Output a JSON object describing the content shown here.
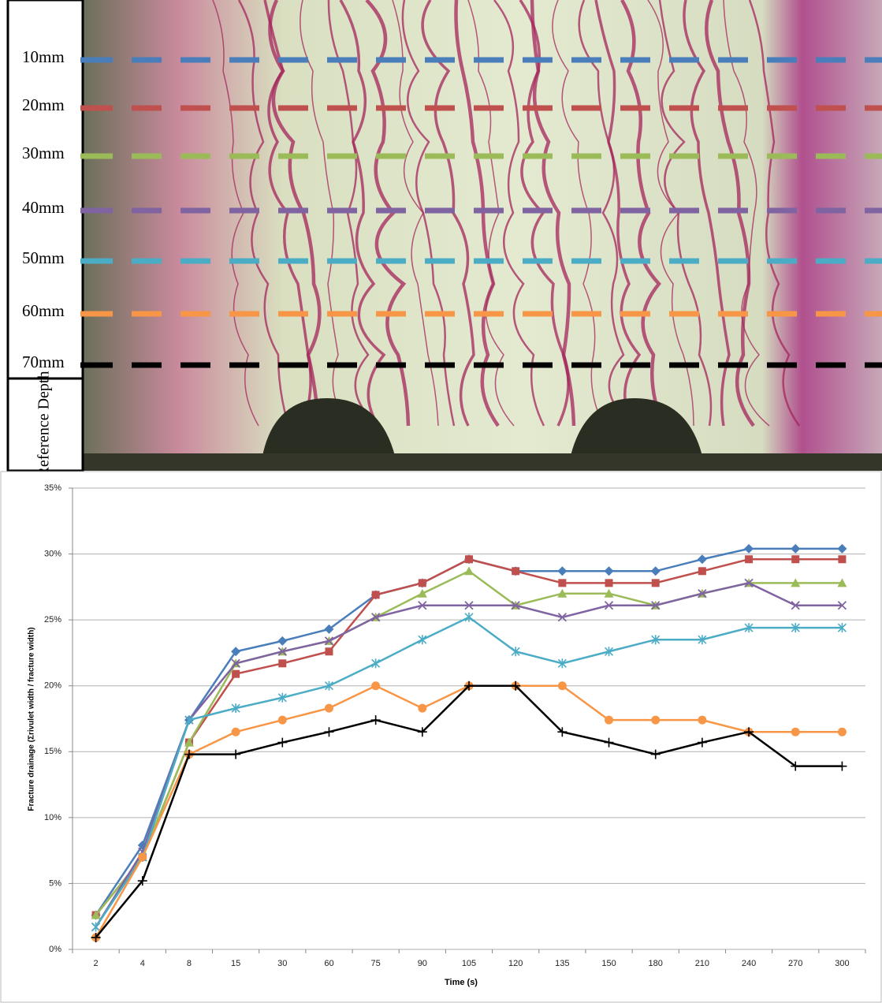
{
  "photo_panel": {
    "caption": "Reference Depth"
  },
  "chart_data": {
    "type": "line",
    "x_label": "Time (s)",
    "y_label": "Fracture drainage (Σrivulet width / fracture width)",
    "categories": [
      "2",
      "4",
      "8",
      "15",
      "30",
      "60",
      "75",
      "90",
      "105",
      "120",
      "135",
      "150",
      "180",
      "210",
      "240",
      "270",
      "300"
    ],
    "ylim": [
      0,
      35
    ],
    "yticks": [
      {
        "value": 0,
        "label": "0%"
      },
      {
        "value": 5,
        "label": "5%"
      },
      {
        "value": 10,
        "label": "10%"
      },
      {
        "value": 15,
        "label": "15%"
      },
      {
        "value": 20,
        "label": "20%"
      },
      {
        "value": 25,
        "label": "25%"
      },
      {
        "value": 30,
        "label": "30%"
      },
      {
        "value": 35,
        "label": "35%"
      }
    ],
    "grid": true,
    "series": [
      {
        "name": "10mm",
        "color": "#4a7ebb",
        "marker": "diamond",
        "values": [
          2.6,
          7.9,
          17.4,
          22.6,
          23.4,
          24.3,
          26.9,
          27.8,
          29.6,
          28.7,
          28.7,
          28.7,
          28.7,
          29.6,
          30.4,
          30.4,
          30.4
        ]
      },
      {
        "name": "20mm",
        "color": "#c0504d",
        "marker": "square",
        "values": [
          2.6,
          7.0,
          15.7,
          20.9,
          21.7,
          22.6,
          26.9,
          27.8,
          29.6,
          28.7,
          27.8,
          27.8,
          27.8,
          28.7,
          29.6,
          29.6,
          29.6
        ]
      },
      {
        "name": "30mm",
        "color": "#9bbb59",
        "marker": "triangle",
        "values": [
          2.6,
          7.0,
          15.7,
          21.7,
          22.6,
          23.4,
          25.2,
          27.0,
          28.7,
          26.1,
          27.0,
          27.0,
          26.1,
          27.0,
          27.8,
          27.8,
          27.8
        ]
      },
      {
        "name": "40mm",
        "color": "#8064a2",
        "marker": "x",
        "values": [
          1.7,
          7.4,
          17.4,
          21.7,
          22.6,
          23.4,
          25.2,
          26.1,
          26.1,
          26.1,
          25.2,
          26.1,
          26.1,
          27.0,
          27.8,
          26.1,
          26.1
        ]
      },
      {
        "name": "50mm",
        "color": "#4bacc6",
        "marker": "star",
        "values": [
          1.7,
          7.0,
          17.4,
          18.3,
          19.1,
          20.0,
          21.7,
          23.5,
          25.2,
          22.6,
          21.7,
          22.6,
          23.5,
          23.5,
          24.4,
          24.4,
          24.4
        ]
      },
      {
        "name": "60mm",
        "color": "#f79646",
        "marker": "circle",
        "values": [
          0.9,
          7.0,
          14.8,
          16.5,
          17.4,
          18.3,
          20.0,
          18.3,
          20.0,
          20.0,
          20.0,
          17.4,
          17.4,
          17.4,
          16.5,
          16.5,
          16.5
        ]
      },
      {
        "name": "70mm",
        "color": "#000000",
        "marker": "plus",
        "values": [
          0.9,
          5.2,
          14.8,
          14.8,
          15.7,
          16.5,
          17.4,
          16.5,
          20.0,
          20.0,
          16.5,
          15.7,
          14.8,
          15.7,
          16.5,
          13.9,
          13.9
        ]
      }
    ]
  }
}
